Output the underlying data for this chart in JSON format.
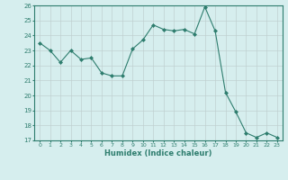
{
  "x": [
    0,
    1,
    2,
    3,
    4,
    5,
    6,
    7,
    8,
    9,
    10,
    11,
    12,
    13,
    14,
    15,
    16,
    17,
    18,
    19,
    20,
    21,
    22,
    23
  ],
  "y": [
    23.5,
    23.0,
    22.2,
    23.0,
    22.4,
    22.5,
    21.5,
    21.3,
    21.3,
    23.1,
    23.7,
    24.7,
    24.4,
    24.3,
    24.4,
    24.1,
    25.9,
    24.3,
    20.2,
    18.9,
    17.5,
    17.2,
    17.5,
    17.2
  ],
  "ylim": [
    17,
    26
  ],
  "xlim": [
    -0.5,
    23.5
  ],
  "yticks": [
    17,
    18,
    19,
    20,
    21,
    22,
    23,
    24,
    25,
    26
  ],
  "xticks": [
    0,
    1,
    2,
    3,
    4,
    5,
    6,
    7,
    8,
    9,
    10,
    11,
    12,
    13,
    14,
    15,
    16,
    17,
    18,
    19,
    20,
    21,
    22,
    23
  ],
  "xlabel": "Humidex (Indice chaleur)",
  "line_color": "#2e7d6e",
  "marker": "D",
  "marker_size": 2.0,
  "bg_color": "#d6eeee",
  "grid_color": "#c0d0d0",
  "axis_color": "#2e7d6e",
  "tick_label_color": "#2e7d6e",
  "xlabel_color": "#2e7d6e"
}
